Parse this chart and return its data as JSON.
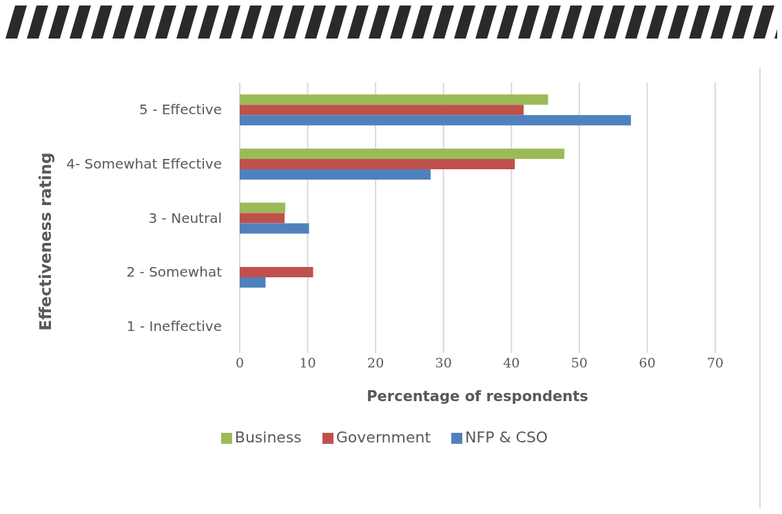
{
  "chart_data": {
    "type": "bar",
    "orientation": "horizontal",
    "xlabel": "Percentage of respondents",
    "ylabel": "Effectiveness rating",
    "categories": [
      "5 - Effective",
      "4- Somewhat Effective",
      "3 - Neutral",
      "2 - Somewhat",
      "1 - Ineffective"
    ],
    "series": [
      {
        "name": "Business",
        "color": "#9bbb59",
        "values": [
          45.4,
          47.8,
          6.7,
          0,
          0
        ]
      },
      {
        "name": "Government",
        "color": "#c0504d",
        "values": [
          41.8,
          40.5,
          6.6,
          10.8,
          0
        ]
      },
      {
        "name": "NFP & CSO",
        "color": "#4f81bd",
        "values": [
          57.6,
          28.1,
          10.2,
          3.8,
          0
        ]
      }
    ],
    "xlim": [
      0,
      70
    ],
    "xticks": [
      0,
      10,
      20,
      30,
      40,
      50,
      60,
      70
    ],
    "grid": "x",
    "legend": "bottom"
  }
}
